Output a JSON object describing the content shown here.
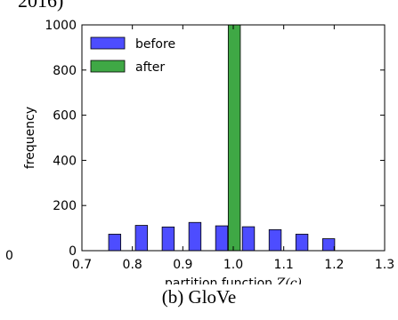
{
  "figure": {
    "top_fragment": "2016)",
    "stray_tick": "0",
    "caption": "(b) GloVe"
  },
  "chart_data": {
    "type": "bar",
    "xlabel": "partition function",
    "xlabel_math": "Z(c)",
    "ylabel": "frequency",
    "xlim": [
      0.7,
      1.3
    ],
    "ylim": [
      0,
      1000
    ],
    "xticks": [
      "0.7",
      "0.8",
      "0.9",
      "1.0",
      "1.1",
      "1.2",
      "1.3"
    ],
    "yticks": [
      "0",
      "200",
      "400",
      "600",
      "800",
      "1000"
    ],
    "bar_width": 0.024,
    "legend_position": "top-left",
    "series": [
      {
        "name": "before",
        "color": "#4d4dff",
        "bins": [
          {
            "x": 0.765,
            "value": 73
          },
          {
            "x": 0.818,
            "value": 112
          },
          {
            "x": 0.871,
            "value": 105
          },
          {
            "x": 0.924,
            "value": 125
          },
          {
            "x": 0.977,
            "value": 110
          },
          {
            "x": 1.03,
            "value": 106
          },
          {
            "x": 1.083,
            "value": 93
          },
          {
            "x": 1.136,
            "value": 73
          },
          {
            "x": 1.189,
            "value": 53
          }
        ]
      },
      {
        "name": "after",
        "color": "#3fa845",
        "bins": [
          {
            "x": 1.002,
            "value": 1000
          }
        ]
      }
    ]
  }
}
